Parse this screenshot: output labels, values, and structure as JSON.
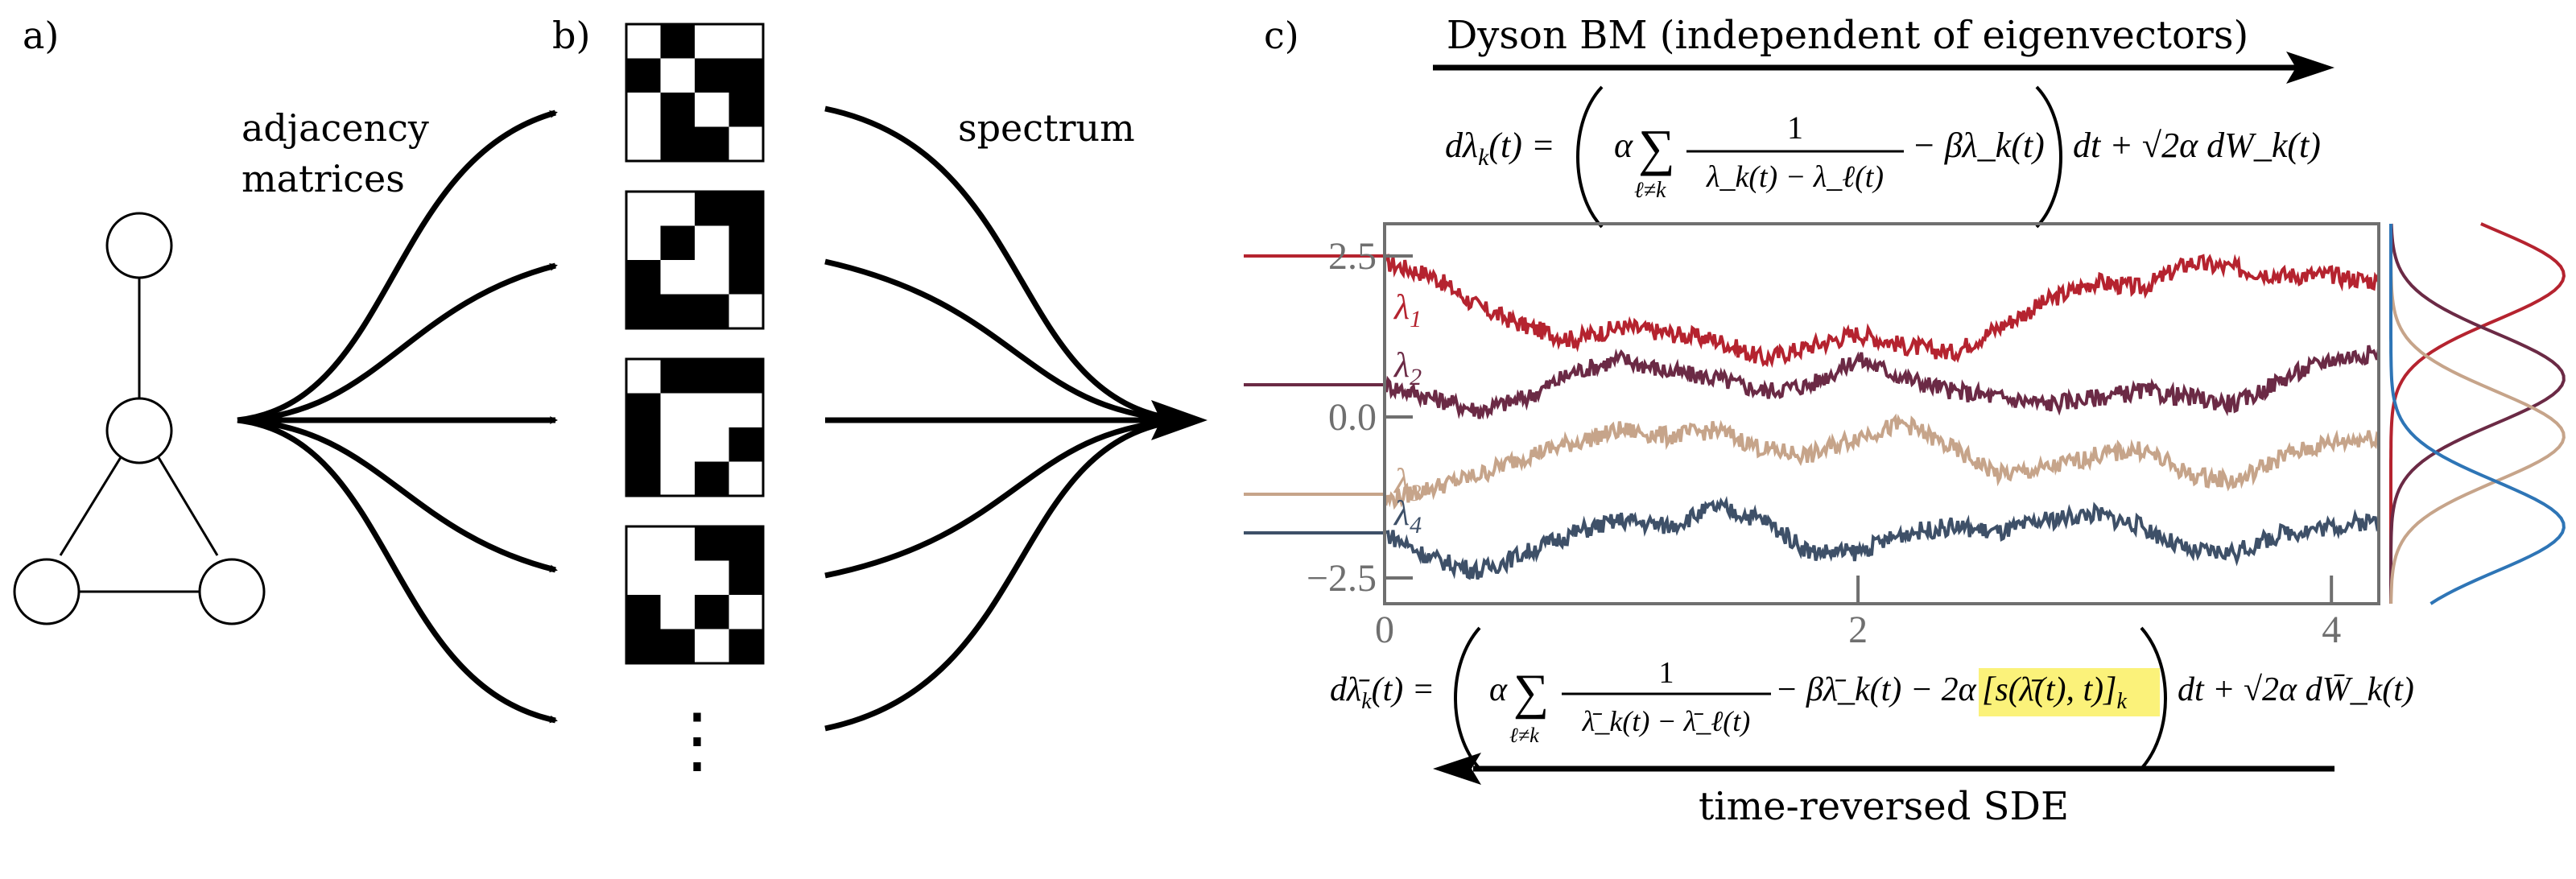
{
  "panels": {
    "a": {
      "label": "a)"
    },
    "b": {
      "label": "b)"
    },
    "c": {
      "label": "c)"
    }
  },
  "labels": {
    "adjacency_line1": "adjacency",
    "adjacency_line2": "matrices",
    "spectrum": "spectrum",
    "forward_title": "Dyson BM (independent of eigenvectors)",
    "reverse_title": "time-reversed SDE"
  },
  "graph": {
    "nodes": [
      "top",
      "middle",
      "bottom-left",
      "bottom-right"
    ],
    "edges": [
      [
        "top",
        "middle"
      ],
      [
        "middle",
        "bottom-left"
      ],
      [
        "middle",
        "bottom-right"
      ],
      [
        "bottom-left",
        "bottom-right"
      ]
    ]
  },
  "matrices": {
    "grids": [
      [
        [
          0,
          1,
          0,
          0
        ],
        [
          1,
          0,
          1,
          1
        ],
        [
          0,
          1,
          0,
          1
        ],
        [
          0,
          1,
          1,
          0
        ]
      ],
      [
        [
          0,
          0,
          1,
          1
        ],
        [
          0,
          1,
          0,
          1
        ],
        [
          1,
          0,
          0,
          1
        ],
        [
          1,
          1,
          1,
          0
        ]
      ],
      [
        [
          0,
          1,
          1,
          1
        ],
        [
          1,
          0,
          0,
          0
        ],
        [
          1,
          0,
          0,
          1
        ],
        [
          1,
          0,
          1,
          0
        ]
      ],
      [
        [
          0,
          0,
          1,
          1
        ],
        [
          0,
          0,
          0,
          1
        ],
        [
          1,
          0,
          1,
          0
        ],
        [
          1,
          1,
          0,
          1
        ]
      ]
    ],
    "ellipsis": "⋮"
  },
  "equations": {
    "forward": {
      "lhs": "dλ",
      "lhs_sub": "k",
      "lhs_arg": "(t) =",
      "alpha": "α",
      "sum": "∑",
      "sum_sub": "ℓ≠k",
      "frac_num": "1",
      "frac_den": "λ_k(t) − λ_ℓ(t)",
      "drift": "− βλ_k(t)",
      "noise": "dt + √2α dW_k(t)"
    },
    "reverse": {
      "lhs": "dλ̄",
      "lhs_sub": "k",
      "lhs_arg": "(t) =",
      "alpha": "α",
      "sum": "∑",
      "sum_sub": "ℓ≠k",
      "frac_num": "1",
      "frac_den": "λ̄_k(t) − λ̄_ℓ(t)",
      "drift": "− βλ̄_k(t) − 2α",
      "score": "[s(λ̄(t), t)]",
      "score_sub": "k",
      "noise": "dt + √2α dW̄_k(t)",
      "highlight_color": "#fbf27a"
    }
  },
  "chart_data": {
    "type": "line",
    "title": "",
    "xlabel": "",
    "ylabel": "",
    "xlim": [
      0,
      4.2
    ],
    "ylim": [
      -2.9,
      3.0
    ],
    "xticks": [
      "0",
      "2",
      "4"
    ],
    "yticks": [
      "2.5",
      "0.0",
      "−2.5"
    ],
    "grid": false,
    "series": [
      {
        "name": "λ1",
        "color": "#b5232f",
        "initial": 2.5,
        "x": [
          0,
          0.2,
          0.4,
          0.6,
          0.8,
          1.0,
          1.2,
          1.4,
          1.6,
          1.8,
          2.0,
          2.2,
          2.4,
          2.6,
          2.8,
          3.0,
          3.2,
          3.4,
          3.6,
          3.8,
          4.0,
          4.2
        ],
        "y": [
          2.4,
          2.2,
          1.7,
          1.4,
          1.2,
          1.4,
          1.3,
          1.2,
          0.9,
          1.1,
          1.3,
          1.1,
          1.0,
          1.4,
          1.8,
          2.1,
          2.0,
          2.4,
          2.3,
          2.2,
          2.2,
          2.1
        ]
      },
      {
        "name": "λ2",
        "color": "#6b2a45",
        "initial": 0.5,
        "x": [
          0,
          0.2,
          0.4,
          0.6,
          0.8,
          1.0,
          1.2,
          1.4,
          1.6,
          1.8,
          2.0,
          2.2,
          2.4,
          2.6,
          2.8,
          3.0,
          3.2,
          3.4,
          3.6,
          3.8,
          4.0,
          4.2
        ],
        "y": [
          0.5,
          0.3,
          0.1,
          0.3,
          0.7,
          0.9,
          0.7,
          0.6,
          0.4,
          0.5,
          0.9,
          0.6,
          0.4,
          0.3,
          0.2,
          0.3,
          0.4,
          0.3,
          0.2,
          0.6,
          0.9,
          1.0
        ]
      },
      {
        "name": "λ3",
        "color": "#c6a48a",
        "initial": -1.2,
        "x": [
          0,
          0.2,
          0.4,
          0.6,
          0.8,
          1.0,
          1.2,
          1.4,
          1.6,
          1.8,
          2.0,
          2.2,
          2.4,
          2.6,
          2.8,
          3.0,
          3.2,
          3.4,
          3.6,
          3.8,
          4.0,
          4.2
        ],
        "y": [
          -1.3,
          -1.1,
          -0.9,
          -0.6,
          -0.4,
          -0.2,
          -0.3,
          -0.2,
          -0.5,
          -0.6,
          -0.3,
          -0.1,
          -0.5,
          -0.9,
          -0.8,
          -0.6,
          -0.5,
          -0.9,
          -1.0,
          -0.6,
          -0.4,
          -0.3
        ]
      },
      {
        "name": "λ4",
        "color": "#3e5068",
        "initial": -1.8,
        "x": [
          0,
          0.2,
          0.4,
          0.6,
          0.8,
          1.0,
          1.2,
          1.4,
          1.6,
          1.8,
          2.0,
          2.2,
          2.4,
          2.6,
          2.8,
          3.0,
          3.2,
          3.4,
          3.6,
          3.8,
          4.0,
          4.2
        ],
        "y": [
          -1.8,
          -2.2,
          -2.4,
          -2.1,
          -1.8,
          -1.6,
          -1.7,
          -1.4,
          -1.6,
          -2.1,
          -2.1,
          -1.8,
          -1.7,
          -1.8,
          -1.6,
          -1.5,
          -1.7,
          -2.1,
          -2.1,
          -1.8,
          -1.7,
          -1.6
        ]
      }
    ],
    "density_colors": [
      "#b5232f",
      "#6b2a45",
      "#c6a48a",
      "#2e75b6"
    ]
  }
}
